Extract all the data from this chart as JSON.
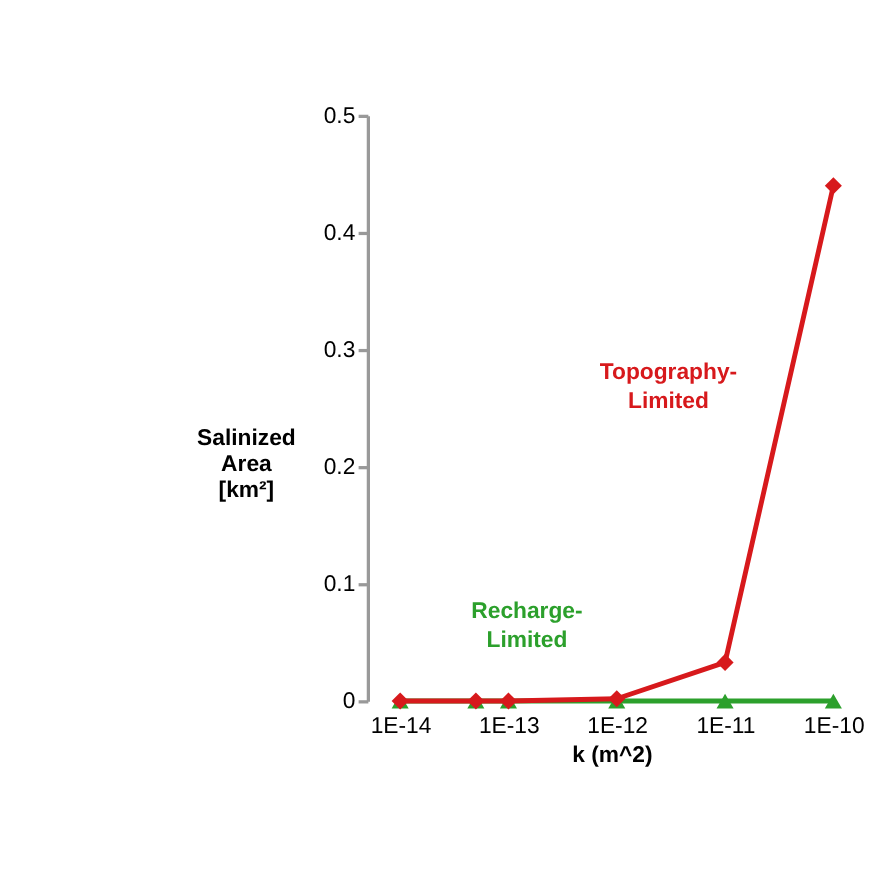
{
  "chart_data": {
    "type": "line",
    "xlabel": "k (m^2)",
    "ylabel": "Salinized\nArea\n[km²]",
    "x": [
      1e-14,
      5e-14,
      1e-13,
      1e-12,
      1e-11,
      1e-10
    ],
    "series": [
      {
        "name": "Topography-\nLimited",
        "color": "#d7191c",
        "marker": "diamond",
        "values": [
          0,
          0,
          0,
          0.002,
          0.033,
          0.44
        ]
      },
      {
        "name": "Recharge-\nLimited",
        "color": "#2ca02c",
        "marker": "triangle",
        "values": [
          0,
          0,
          0,
          0,
          0,
          0
        ]
      }
    ],
    "log": "x",
    "xlim": [
      5e-15,
      1.6e-10
    ],
    "xticks": [
      {
        "value": 1e-14,
        "label": "1E-14"
      },
      {
        "value": 1e-13,
        "label": "1E-13"
      },
      {
        "value": 1e-12,
        "label": "1E-12"
      },
      {
        "value": 1e-11,
        "label": "1E-11"
      },
      {
        "value": 1e-10,
        "label": "1E-10"
      }
    ],
    "ylim": [
      0,
      0.5
    ],
    "yticks": [
      0,
      0.1,
      0.2,
      0.3,
      0.4,
      0.5
    ],
    "grid": false,
    "legend": false,
    "line_style": "solid"
  }
}
